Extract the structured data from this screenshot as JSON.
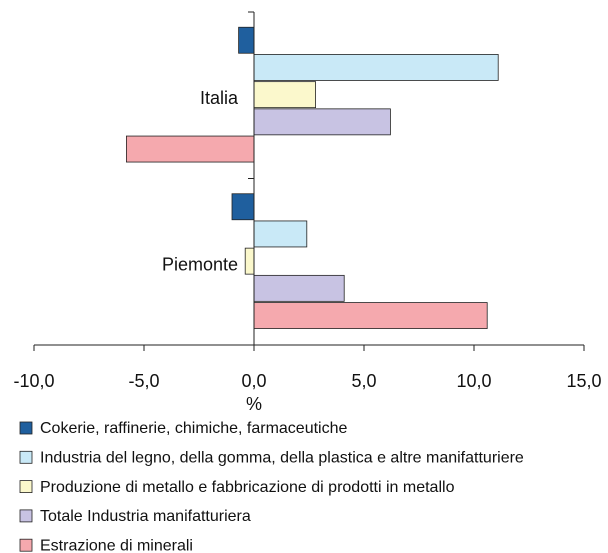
{
  "chart_data": {
    "type": "hbar",
    "categories": [
      "Italia",
      "Piemonte"
    ],
    "xlabel": "%",
    "xlim": [
      -10,
      15
    ],
    "xticks": [
      {
        "value": -10,
        "label": "-10,0"
      },
      {
        "value": -5,
        "label": "-5,0"
      },
      {
        "value": 0,
        "label": "0,0"
      },
      {
        "value": 5,
        "label": "5,0"
      },
      {
        "value": 10,
        "label": "10,0"
      },
      {
        "value": 15,
        "label": "15,0"
      }
    ],
    "series": [
      {
        "name": "Cokerie, raffinerie, chimiche, farmaceutiche",
        "color": "#1f5f9e",
        "values": [
          -0.7,
          -1.0
        ]
      },
      {
        "name": "Industria del legno, della gomma, della plastica e altre manifatturiere",
        "color": "#c9e9f7",
        "values": [
          11.1,
          2.4
        ]
      },
      {
        "name": "Produzione di metallo e fabbricazione di prodotti in metallo",
        "color": "#fbf8cc",
        "values": [
          2.8,
          -0.4
        ]
      },
      {
        "name": "Totale Industria manifatturiera",
        "color": "#c8c3e3",
        "values": [
          6.2,
          4.1
        ]
      },
      {
        "name": "Estrazione di minerali",
        "color": "#f5a9ae",
        "values": [
          -5.8,
          10.6
        ]
      }
    ]
  }
}
